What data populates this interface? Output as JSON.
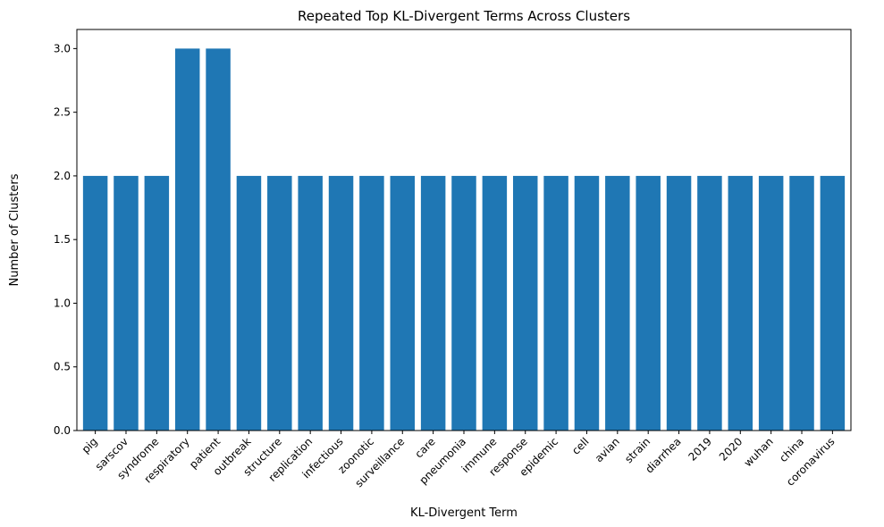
{
  "chart_data": {
    "type": "bar",
    "title": "Repeated Top KL-Divergent Terms Across Clusters",
    "xlabel": "KL-Divergent Term",
    "ylabel": "Number of Clusters",
    "ylim": [
      0,
      3.15
    ],
    "yticks": [
      0.0,
      0.5,
      1.0,
      1.5,
      2.0,
      2.5,
      3.0
    ],
    "ytick_labels": [
      "0.0",
      "0.5",
      "1.0",
      "1.5",
      "2.0",
      "2.5",
      "3.0"
    ],
    "categories": [
      "pig",
      "sarscov",
      "syndrome",
      "respiratory",
      "patient",
      "outbreak",
      "structure",
      "replication",
      "infectious",
      "zoonotic",
      "surveillance",
      "care",
      "pneumonia",
      "immune",
      "response",
      "epidemic",
      "cell",
      "avian",
      "strain",
      "diarrhea",
      "2019",
      "2020",
      "wuhan",
      "china",
      "coronavirus"
    ],
    "values": [
      2,
      2,
      2,
      3,
      3,
      2,
      2,
      2,
      2,
      2,
      2,
      2,
      2,
      2,
      2,
      2,
      2,
      2,
      2,
      2,
      2,
      2,
      2,
      2,
      2
    ],
    "bar_color": "#1f77b4",
    "grid": false,
    "legend": "none"
  }
}
